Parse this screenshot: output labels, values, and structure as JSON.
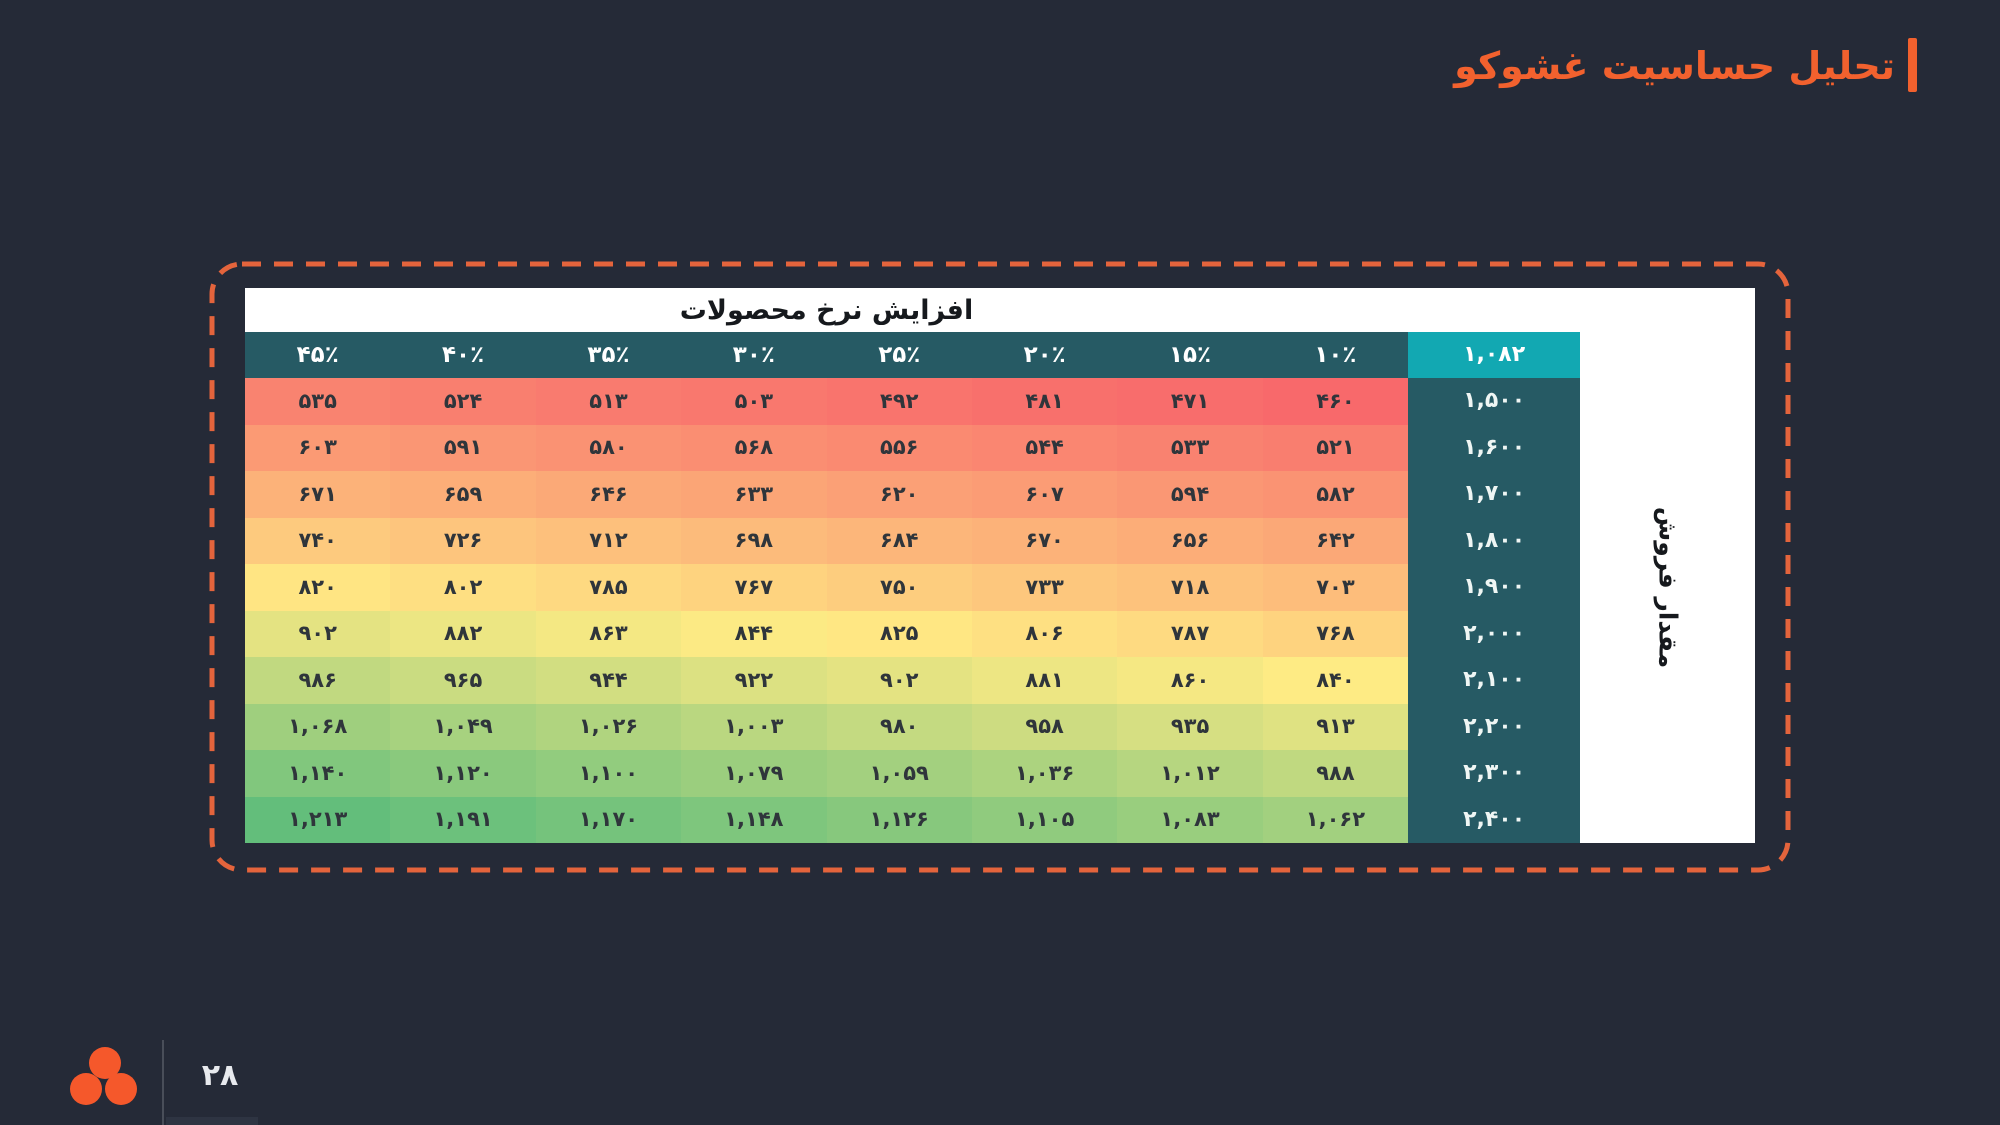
{
  "slide": {
    "title": "تحلیل حساسیت غشوکو",
    "page_number": "۲۸"
  },
  "chart_data": {
    "type": "heatmap",
    "title": "تحلیل حساسیت غشوکو",
    "column_axis_title": "افزایش نرخ محصولات",
    "row_axis_title": "مقدار فروش",
    "column_headers_percent": [
      45,
      40,
      35,
      30,
      25,
      20,
      15,
      10
    ],
    "row_headers_quantity": [
      1500,
      1600,
      1700,
      1800,
      1900,
      2000,
      2100,
      2200,
      2300,
      2400
    ],
    "base_value": 1082,
    "values": [
      [
        535,
        524,
        513,
        503,
        492,
        481,
        471,
        460
      ],
      [
        603,
        591,
        580,
        568,
        556,
        544,
        533,
        521
      ],
      [
        671,
        659,
        646,
        633,
        620,
        607,
        594,
        582
      ],
      [
        740,
        726,
        712,
        698,
        684,
        670,
        656,
        642
      ],
      [
        820,
        802,
        785,
        767,
        750,
        733,
        718,
        703
      ],
      [
        902,
        882,
        863,
        844,
        825,
        806,
        787,
        768
      ],
      [
        986,
        965,
        944,
        922,
        902,
        881,
        860,
        840
      ],
      [
        1068,
        1049,
        1026,
        1003,
        980,
        958,
        935,
        913
      ],
      [
        1140,
        1120,
        1100,
        1079,
        1059,
        1036,
        1012,
        988
      ],
      [
        1213,
        1191,
        1170,
        1148,
        1126,
        1105,
        1083,
        1062
      ]
    ],
    "color_scale": {
      "min_color": "#F8696B",
      "mid_color": "#FFEB84",
      "max_color": "#63BE7B"
    },
    "legend": "none",
    "digits": "persian"
  },
  "colors": {
    "background": "#252A37",
    "accent_orange": "#F2612E",
    "dashed_border": "#E4643C",
    "header_teal": "#265A64",
    "base_cell_cyan": "#12A8B2",
    "card_white": "#FFFFFF",
    "cell_text": "#2F353B",
    "header_text": "#FFFFFF"
  }
}
